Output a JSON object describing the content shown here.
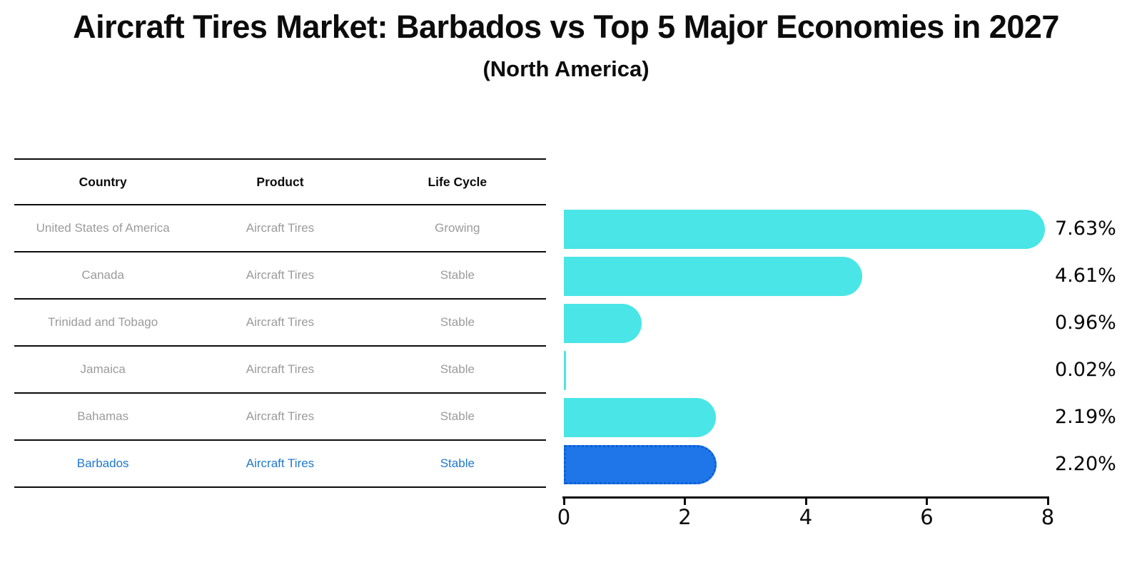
{
  "title": "Aircraft Tires Market: Barbados vs Top 5 Major Economies in 2027",
  "subtitle": "(North America)",
  "table": {
    "columns": [
      "Country",
      "Product",
      "Life Cycle"
    ],
    "rows": [
      {
        "country": "United States of America",
        "product": "Aircraft Tires",
        "life_cycle": "Growing",
        "highlight": false
      },
      {
        "country": "Canada",
        "product": "Aircraft Tires",
        "life_cycle": "Stable",
        "highlight": false
      },
      {
        "country": "Trinidad and Tobago",
        "product": "Aircraft Tires",
        "life_cycle": "Stable",
        "highlight": false
      },
      {
        "country": "Jamaica",
        "product": "Aircraft Tires",
        "life_cycle": "Stable",
        "highlight": false
      },
      {
        "country": "Bahamas",
        "product": "Aircraft Tires",
        "life_cycle": "Stable",
        "highlight": false
      },
      {
        "country": "Barbados",
        "product": "Aircraft Tires",
        "life_cycle": "Stable",
        "highlight": true
      }
    ]
  },
  "chart_data": {
    "type": "bar",
    "orientation": "horizontal",
    "title": "Aircraft Tires Market: Barbados vs Top 5 Major Economies in 2027",
    "subtitle": "(North America)",
    "categories": [
      "United States of America",
      "Canada",
      "Trinidad and Tobago",
      "Jamaica",
      "Bahamas",
      "Barbados"
    ],
    "values": [
      7.63,
      4.61,
      0.96,
      0.02,
      2.19,
      2.2
    ],
    "value_labels": [
      "7.63%",
      "4.61%",
      "0.96%",
      "0.02%",
      "2.19%",
      "2.20%"
    ],
    "xlim": [
      0,
      8
    ],
    "xticks": [
      "0",
      "2",
      "4",
      "6",
      "8"
    ],
    "grid": false,
    "legend": false,
    "bar_color": "#4AE5E6",
    "highlight_index": 5,
    "highlight_color": "#1E76E8",
    "highlight_border_color": "#0D5FD6"
  },
  "colors": {
    "text": "#0c0c0c",
    "muted_row_text": "#9b9b9b",
    "highlight_row_text": "#1f78cc",
    "axis": "#0c0c0c"
  }
}
